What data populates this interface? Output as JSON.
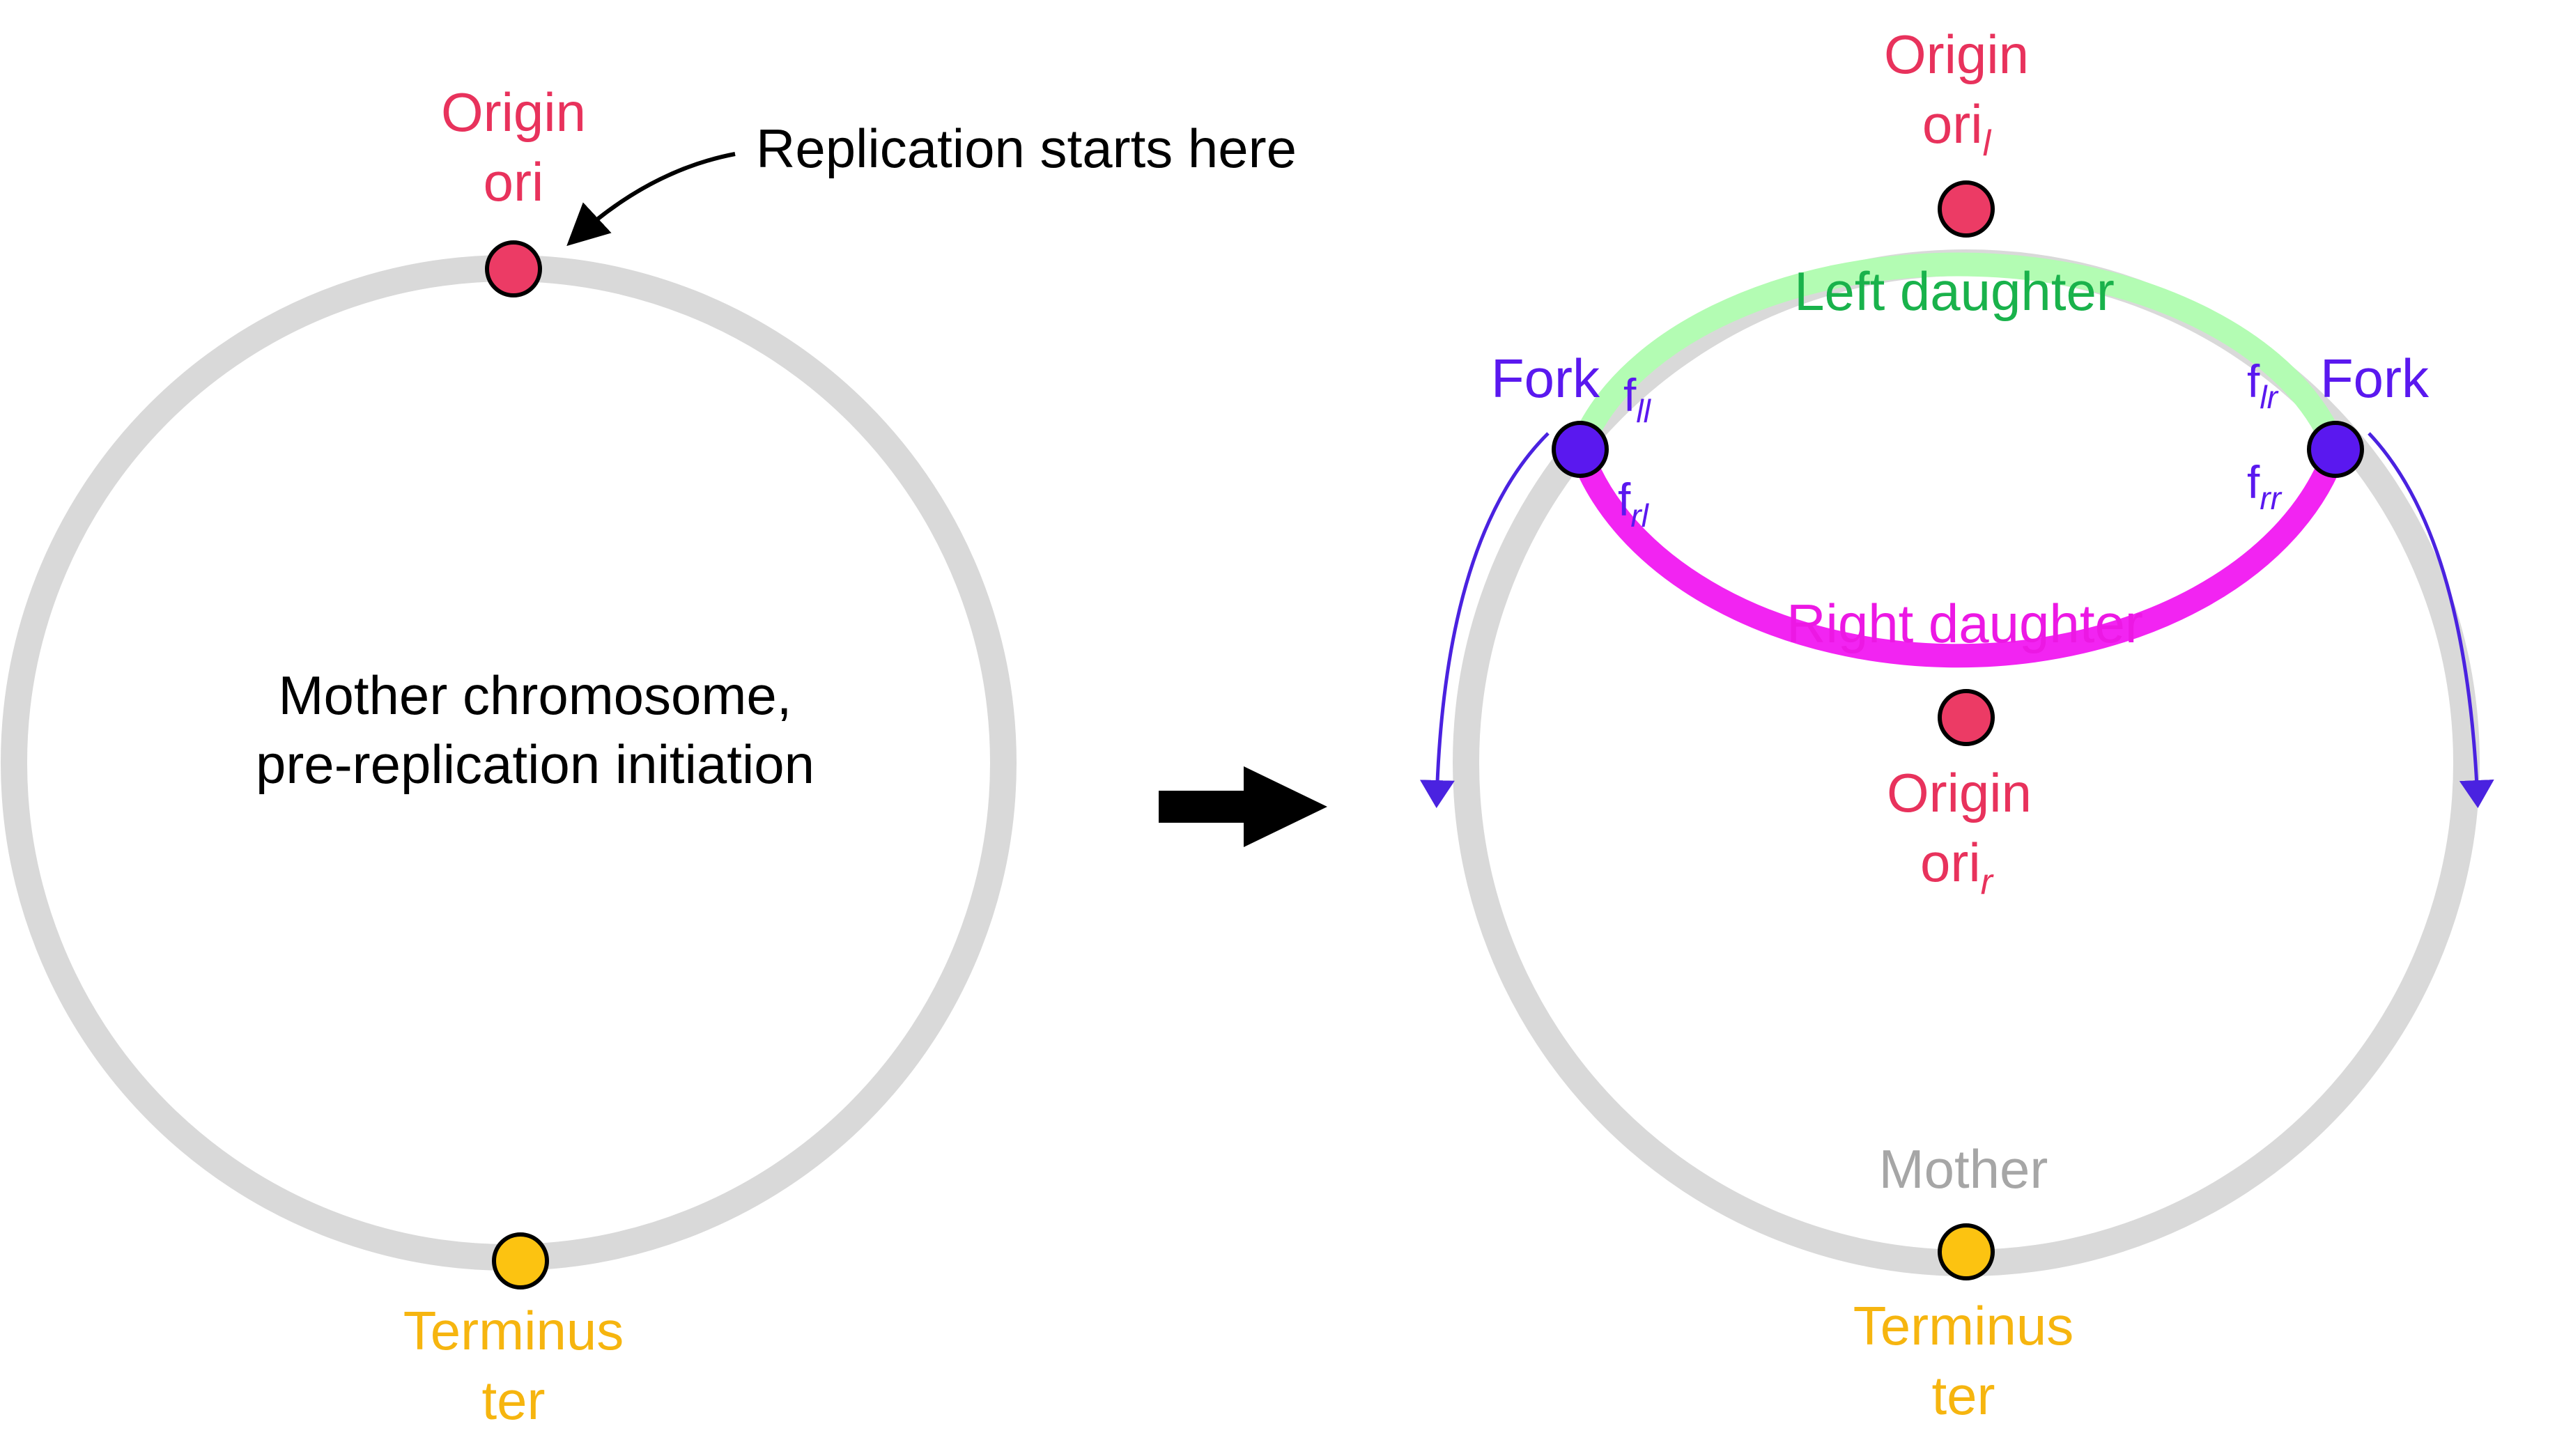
{
  "colors": {
    "mother_ring": "#d9d9d9",
    "left_daughter": "#b3fcb3",
    "right_daughter": "#f224f2",
    "origin": "#ec3b65",
    "origin_text": "#e8325c",
    "fork": "#5a18ef",
    "terminus": "#fcc311",
    "terminus_text": "#f6b50f",
    "left_daughter_text": "#19b24b",
    "right_daughter_text": "#ec18e4",
    "mother_text": "#a6a6a6",
    "fork_arrow": "#4a22e0",
    "black": "#000000"
  },
  "left_panel": {
    "origin_label": "Origin",
    "origin_sub": "ori",
    "replication_note": "Replication starts here",
    "center_line1": "Mother chromosome,",
    "center_line2": "pre-replication initiation",
    "terminus_label": "Terminus",
    "terminus_sub": "ter"
  },
  "right_panel": {
    "origin_top_label": "Origin",
    "origin_top_base": "ori",
    "origin_top_subscript": "l",
    "left_daughter_label": "Left daughter",
    "fork_left_label": "Fork",
    "fork_right_label": "Fork",
    "f_ll_base": "f",
    "f_ll_sub": "ll",
    "f_rl_base": "f",
    "f_rl_sub": "rl",
    "f_lr_base": "f",
    "f_lr_sub": "lr",
    "f_rr_base": "f",
    "f_rr_sub": "rr",
    "right_daughter_label": "Right daughter",
    "origin_bottom_label": "Origin",
    "origin_bottom_base": "ori",
    "origin_bottom_subscript": "r",
    "mother_label": "Mother",
    "terminus_label": "Terminus",
    "terminus_sub": "ter"
  }
}
